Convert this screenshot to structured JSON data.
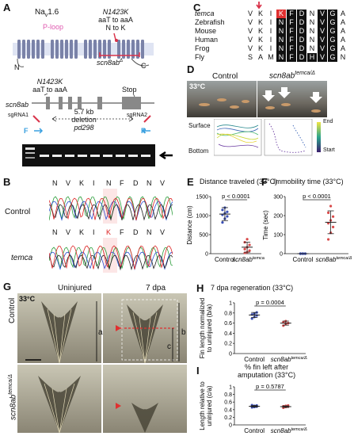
{
  "panels": {
    "A": {
      "letter": "A",
      "channel_name": "Na",
      "channel_sub": "v",
      "channel_suffix": "1.6",
      "ploop_label": "P-loop",
      "mut_title": "N1423K",
      "mut_line1": "aaT to aaA",
      "mut_line2": "N to K",
      "n_term": "N",
      "c_term": "C",
      "scn8ab_delta": "scn8ab",
      "gene_label": "scn8ab",
      "mut2_title": "N1423K",
      "mut2_line1": "aaT to aaA",
      "stop_label": "Stop",
      "sgrna1": "sgRNA1",
      "sgrna2": "sgRNA2",
      "deletion_line1": "5.7 kb",
      "deletion_line2": "deletion",
      "deletion_line3": "pd298",
      "primer_f": "F",
      "primer_r": "R"
    },
    "B": {
      "letter": "B",
      "sequence_letters": [
        "N",
        "V",
        "K",
        "I",
        "N",
        "F",
        "D",
        "N",
        "V"
      ],
      "temca_letters": [
        "N",
        "V",
        "K",
        "I",
        "K",
        "F",
        "D",
        "N",
        "V"
      ],
      "control_label": "Control",
      "temca_label": "temca"
    },
    "C": {
      "letter": "C",
      "rows": [
        {
          "species": "temca",
          "seq": [
            "V",
            "K",
            "I",
            "K",
            "F",
            "D",
            "N",
            "V",
            "G",
            "A"
          ]
        },
        {
          "species": "Zebrafish",
          "seq": [
            "V",
            "K",
            "I",
            "N",
            "F",
            "D",
            "N",
            "V",
            "G",
            "A"
          ]
        },
        {
          "species": "Mouse",
          "seq": [
            "V",
            "K",
            "I",
            "N",
            "F",
            "D",
            "N",
            "V",
            "G",
            "A"
          ]
        },
        {
          "species": "Human",
          "seq": [
            "V",
            "K",
            "I",
            "N",
            "F",
            "D",
            "N",
            "V",
            "G",
            "A"
          ]
        },
        {
          "species": "Frog",
          "seq": [
            "V",
            "K",
            "I",
            "N",
            "F",
            "D",
            "N",
            "V",
            "G",
            "A"
          ]
        },
        {
          "species": "Fly",
          "seq": [
            "S",
            "A",
            "M",
            "N",
            "F",
            "D",
            "H",
            "V",
            "G",
            "N"
          ]
        }
      ]
    },
    "D": {
      "letter": "D",
      "temp": "33°C",
      "control_label": "Control",
      "mutant_label": "scn8ab",
      "mutant_sup": "temca/Δ",
      "surface_label": "Surface",
      "bottom_label": "Bottom",
      "legend_end": "End",
      "legend_start": "Start"
    },
    "E": {
      "letter": "E",
      "title": "Distance traveled (33°C)",
      "pvalue": "p < 0.0001",
      "ylabel": "Distance (cm)",
      "x_control": "Control",
      "x_mut": "scn8ab",
      "x_mut_sup": "temca/Δ"
    },
    "F": {
      "letter": "F",
      "title": "Immobility time (33°C)",
      "pvalue": "p < 0.0001",
      "ylabel": "Time (sec)",
      "x_control": "Control",
      "x_mut": "scn8ab",
      "x_mut_sup": "temca/Δ"
    },
    "G": {
      "letter": "G",
      "col_uninjured": "Uninjured",
      "col_7dpa": "7 dpa",
      "temp": "33°C",
      "row_control": "Control",
      "row_mut": "scn8ab",
      "row_mut_sup": "temca/Δ",
      "bracket_a": "a",
      "bracket_b": "b",
      "bracket_c": "c"
    },
    "H": {
      "letter": "H",
      "title": "7 dpa regeneration (33°C)",
      "pvalue": "p = 0.0004",
      "ylabel_1": "Fin length normalized",
      "ylabel_2": "to uninjured (b/a)",
      "x_control": "Control",
      "x_mut": "scn8ab",
      "x_mut_sup": "temca/Δ"
    },
    "I": {
      "letter": "I",
      "title": "% fin left after",
      "title2": "amputation (33°C)",
      "pvalue": "p = 0.5787",
      "ylabel_1": "Length relative to",
      "ylabel_2": "uninjured (c/a)",
      "x_control": "Control",
      "x_mut": "scn8ab",
      "x_mut_sup": "temca/Δ"
    }
  },
  "chart_data": [
    {
      "panel": "E",
      "type": "scatter",
      "title": "Distance traveled (33°C)",
      "ylabel": "Distance (cm)",
      "categories": [
        "Control",
        "scn8ab temca/Δ"
      ],
      "ylim": [
        0,
        1500
      ],
      "yticks": [
        0,
        500,
        1000,
        1500
      ],
      "series": [
        {
          "name": "Control",
          "color": "#3a4fb5",
          "mean": 1040,
          "sd": 170,
          "values": [
            820,
            920,
            980,
            1020,
            1060,
            1100,
            1150,
            1210
          ]
        },
        {
          "name": "scn8ab temca/Δ",
          "color": "#d94a4a",
          "mean": 170,
          "sd": 130,
          "values": [
            20,
            40,
            80,
            120,
            170,
            230,
            300,
            380
          ]
        }
      ]
    },
    {
      "panel": "F",
      "type": "scatter",
      "title": "Immobility time (33°C)",
      "ylabel": "Time (sec)",
      "categories": [
        "Control",
        "scn8ab temca/Δ"
      ],
      "ylim": [
        0,
        300
      ],
      "yticks": [
        0,
        100,
        200,
        300
      ],
      "series": [
        {
          "name": "Control",
          "color": "#3a4fb5",
          "mean": 0,
          "sd": 0,
          "values": [
            0,
            0,
            0,
            0,
            0,
            0,
            0,
            0
          ]
        },
        {
          "name": "scn8ab temca/Δ",
          "color": "#d94a4a",
          "mean": 165,
          "sd": 60,
          "values": [
            75,
            110,
            140,
            160,
            175,
            195,
            215,
            250
          ]
        }
      ]
    },
    {
      "panel": "H",
      "type": "scatter",
      "title": "7 dpa regeneration (33°C)",
      "ylabel": "Fin length normalized to uninjured (b/a)",
      "categories": [
        "Control",
        "scn8ab temca/Δ"
      ],
      "ylim": [
        0,
        1.0
      ],
      "yticks": [
        0,
        0.2,
        0.4,
        0.6,
        0.8,
        1.0
      ],
      "series": [
        {
          "name": "Control",
          "color": "#3a4fb5",
          "mean": 0.76,
          "sd": 0.05,
          "values": [
            0.69,
            0.72,
            0.75,
            0.77,
            0.79,
            0.81
          ]
        },
        {
          "name": "scn8ab temca/Δ",
          "color": "#d94a4a",
          "mean": 0.6,
          "sd": 0.04,
          "values": [
            0.55,
            0.58,
            0.6,
            0.62,
            0.64
          ]
        }
      ]
    },
    {
      "panel": "I",
      "type": "scatter",
      "title": "% fin left after amputation (33°C)",
      "ylabel": "Length relative to uninjured (c/a)",
      "categories": [
        "Control",
        "scn8ab temca/Δ"
      ],
      "ylim": [
        0,
        1.0
      ],
      "yticks": [
        0,
        0.2,
        0.4,
        0.6,
        0.8,
        1.0
      ],
      "series": [
        {
          "name": "Control",
          "color": "#3a4fb5",
          "mean": 0.49,
          "sd": 0.02,
          "values": [
            0.46,
            0.47,
            0.48,
            0.49,
            0.5,
            0.51,
            0.52
          ]
        },
        {
          "name": "scn8ab temca/Δ",
          "color": "#d94a4a",
          "mean": 0.48,
          "sd": 0.02,
          "values": [
            0.45,
            0.47,
            0.48,
            0.49,
            0.5,
            0.51
          ]
        }
      ]
    }
  ]
}
